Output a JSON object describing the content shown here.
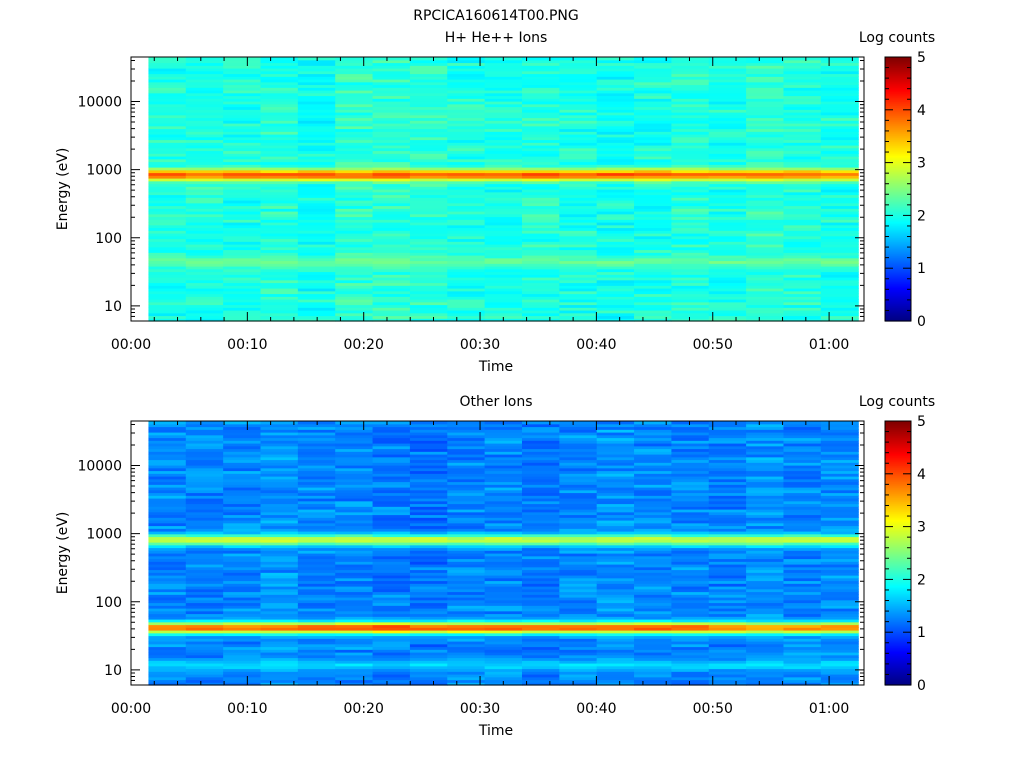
{
  "figure": {
    "title": "RPCICA160614T00.PNG"
  },
  "colors": {
    "colormap": [
      "#00007f",
      "#0000ff",
      "#007fff",
      "#00ffff",
      "#7fff7f",
      "#ffff00",
      "#ff7f00",
      "#ff0000",
      "#7f0000"
    ]
  },
  "chart_data": [
    {
      "type": "heatmap",
      "title": "H+ He++ Ions",
      "xlabel": "Time",
      "ylabel": "Energy (eV)",
      "colorbar_label": "Log counts",
      "yscale": "log",
      "xlim": [
        "00:00",
        "01:03"
      ],
      "ylim": [
        6,
        45000
      ],
      "xticks": [
        "00:00",
        "00:10",
        "00:20",
        "00:30",
        "00:40",
        "00:50",
        "01:00"
      ],
      "yticks": [
        {
          "value": 10,
          "label": "10"
        },
        {
          "value": 100,
          "label": "100"
        },
        {
          "value": 1000,
          "label": "1000"
        },
        {
          "value": 10000,
          "label": "10000"
        }
      ],
      "colorbar_ticks": [
        "0",
        "1",
        "2",
        "3",
        "4",
        "5"
      ],
      "color_range": [
        0,
        5
      ],
      "time_bins": {
        "start_minutes": 1.5,
        "end_minutes": 62.5,
        "count": 19
      },
      "energy_bins": {
        "min": 6,
        "max": 45000,
        "count": 96
      },
      "bands": [
        {
          "center_eV": 15,
          "peak_log_counts": 0.9
        },
        {
          "center_eV": 45,
          "peak_log_counts": 2.4
        },
        {
          "center_eV": 850,
          "peak_log_counts": 3.9
        }
      ],
      "background_log_counts": 1.9,
      "bg_by_time": [
        1.9,
        1.95,
        1.9,
        1.95,
        1.85,
        2.0,
        2.0,
        2.0,
        1.9,
        1.9,
        1.95,
        1.9,
        1.85,
        1.9,
        1.95,
        1.9,
        2.0,
        1.95,
        1.9
      ],
      "band_shift_by_time": {
        "2": [
          0,
          0,
          0,
          0,
          0.1,
          0,
          0.2,
          0,
          0,
          0,
          0.1,
          0,
          0.1,
          0.1,
          0,
          0,
          -0.1,
          0,
          -0.1
        ]
      }
    },
    {
      "type": "heatmap",
      "title": "Other Ions",
      "xlabel": "Time",
      "ylabel": "Energy (eV)",
      "colorbar_label": "Log counts",
      "yscale": "log",
      "xlim": [
        "00:00",
        "01:03"
      ],
      "ylim": [
        6,
        45000
      ],
      "xticks": [
        "00:00",
        "00:10",
        "00:20",
        "00:30",
        "00:40",
        "00:50",
        "01:00"
      ],
      "yticks": [
        {
          "value": 10,
          "label": "10"
        },
        {
          "value": 100,
          "label": "100"
        },
        {
          "value": 1000,
          "label": "1000"
        },
        {
          "value": 10000,
          "label": "10000"
        }
      ],
      "colorbar_ticks": [
        "0",
        "1",
        "2",
        "3",
        "4",
        "5"
      ],
      "color_range": [
        0,
        5
      ],
      "time_bins": {
        "start_minutes": 1.5,
        "end_minutes": 62.5,
        "count": 19
      },
      "energy_bins": {
        "min": 6,
        "max": 45000,
        "count": 96
      },
      "bands": [
        {
          "center_eV": 12,
          "peak_log_counts": 1.7
        },
        {
          "center_eV": 42,
          "peak_log_counts": 3.9
        },
        {
          "center_eV": 820,
          "peak_log_counts": 2.9
        }
      ],
      "background_log_counts": 1.2,
      "bg_by_time": [
        1.2,
        1.15,
        1.2,
        1.25,
        1.2,
        1.2,
        1.15,
        1.1,
        1.2,
        1.2,
        1.15,
        1.2,
        1.25,
        1.2,
        1.2,
        1.15,
        1.25,
        1.2,
        1.2
      ],
      "band_shift_by_time": {
        "1": [
          0,
          0,
          0,
          0,
          0.1,
          0.2,
          0.3,
          0.1,
          0.1,
          0.1,
          0.05,
          0.1,
          0.1,
          0.1,
          0.1,
          0,
          -0.2,
          -0.1,
          -0.1
        ]
      }
    }
  ]
}
